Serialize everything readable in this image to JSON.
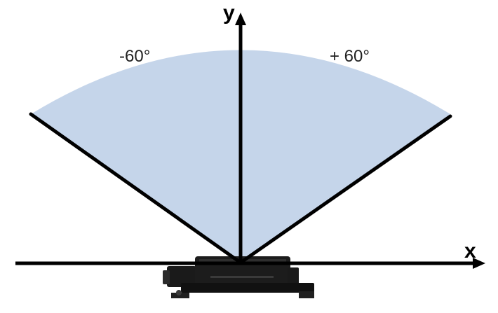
{
  "axes": {
    "x_label": "x",
    "y_label": "y"
  },
  "field_of_view": {
    "left_angle_label": "-60°",
    "right_angle_label": "+ 60°",
    "left_angle_deg": -60,
    "right_angle_deg": 60
  },
  "colors": {
    "sector_fill": "#c5d5ea",
    "line": "#000000",
    "sensor_body": "#1a1a1a"
  },
  "icons": {
    "sensor": "radar-sensor-device-icon"
  }
}
